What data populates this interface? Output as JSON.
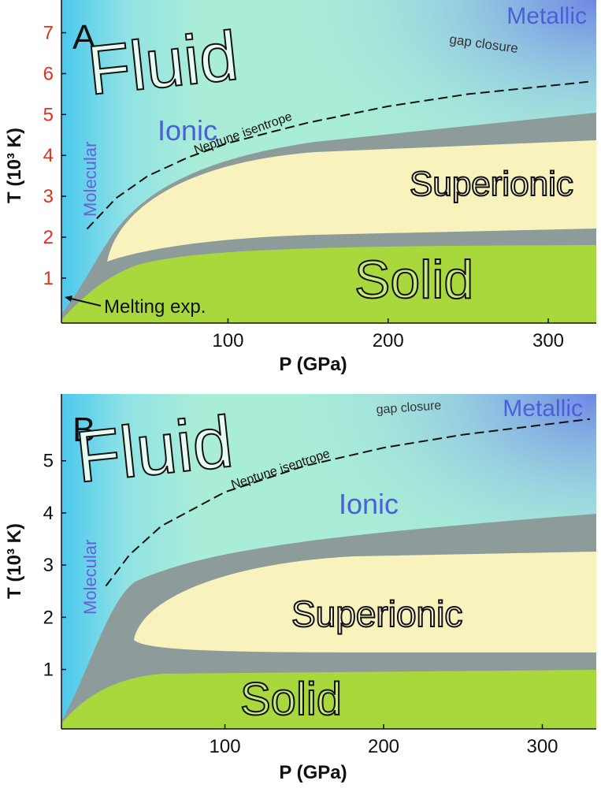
{
  "chart_data": [
    {
      "type": "line",
      "panel_label": "A",
      "xlabel": "P (GPa)",
      "ylabel": "T (10³ K)",
      "xlim": [
        -4,
        330
      ],
      "xticks": [
        100,
        200,
        300
      ],
      "ylim": [
        -0.1,
        7.8
      ],
      "yticks": [
        1,
        2,
        3,
        4,
        5,
        6,
        7
      ],
      "ytick_color": "#e0301e",
      "series": [
        {
          "name": "Neptune isentrope",
          "color": "#111111",
          "dashed": true,
          "x": [
            12,
            30,
            50,
            75,
            100,
            150,
            200,
            250,
            325
          ],
          "values": [
            2.2,
            2.95,
            3.5,
            3.95,
            4.3,
            4.8,
            5.2,
            5.5,
            5.8
          ]
        }
      ],
      "annotations": [
        "Fluid",
        "Ionic",
        "Molecular",
        "Metallic",
        "gap closure",
        "Superionic",
        "Solid",
        "Melting exp."
      ]
    },
    {
      "type": "line",
      "panel_label": "B",
      "xlabel": "P (GPa)",
      "ylabel": "T (10³ K)",
      "xlim": [
        -3,
        334
      ],
      "xticks": [
        100,
        200,
        300
      ],
      "ylim": [
        -0.14,
        6.28
      ],
      "yticks": [
        1,
        2,
        3,
        4,
        5
      ],
      "ytick_color": "#111111",
      "series": [
        {
          "name": "Neptune isentrope",
          "color": "#111111",
          "dashed": true,
          "x": [
            25,
            40,
            60,
            100,
            150,
            200,
            250,
            330
          ],
          "values": [
            2.6,
            3.2,
            3.75,
            4.4,
            4.9,
            5.25,
            5.5,
            5.8
          ]
        }
      ],
      "annotations": [
        "Fluid",
        "Ionic",
        "Molecular",
        "Metallic",
        "gap closure",
        "Superionic",
        "Solid"
      ]
    }
  ]
}
